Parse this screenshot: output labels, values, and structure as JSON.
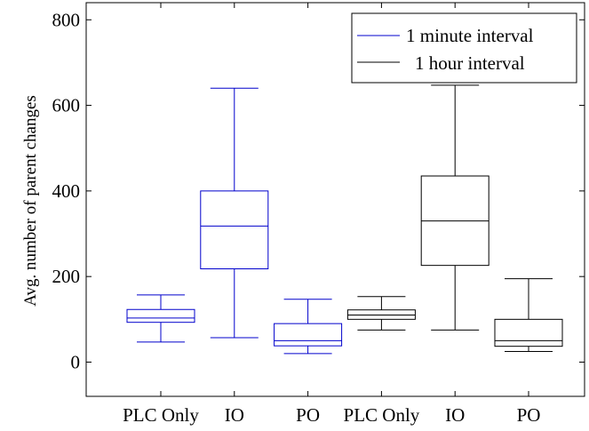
{
  "chart_data": {
    "type": "box",
    "title": "",
    "xlabel": "",
    "ylabel": "Avg. number of parent changes",
    "ylim": [
      -80,
      840
    ],
    "yticks": [
      0,
      200,
      400,
      600,
      800
    ],
    "categories": [
      "PLC Only",
      "IO",
      "PO",
      "PLC Only",
      "IO",
      "PO"
    ],
    "legend": {
      "position": "top-right"
    },
    "series": [
      {
        "name": "1 minute interval",
        "color": "#0000cc",
        "boxes": [
          {
            "category": "PLC Only",
            "whisker_low": 47,
            "q1": 93,
            "median": 103,
            "q3": 123,
            "whisker_high": 157
          },
          {
            "category": "IO",
            "whisker_low": 57,
            "q1": 218,
            "median": 318,
            "q3": 400,
            "whisker_high": 640
          },
          {
            "category": "PO",
            "whisker_low": 20,
            "q1": 38,
            "median": 50,
            "q3": 90,
            "whisker_high": 147
          }
        ]
      },
      {
        "name": "1 hour interval",
        "color": "#000000",
        "boxes": [
          {
            "category": "PLC Only",
            "whisker_low": 75,
            "q1": 100,
            "median": 110,
            "q3": 122,
            "whisker_high": 153
          },
          {
            "category": "IO",
            "whisker_low": 75,
            "q1": 226,
            "median": 330,
            "q3": 435,
            "whisker_high": 647
          },
          {
            "category": "PO",
            "whisker_low": 25,
            "q1": 37,
            "median": 50,
            "q3": 100,
            "whisker_high": 195
          }
        ]
      }
    ]
  }
}
